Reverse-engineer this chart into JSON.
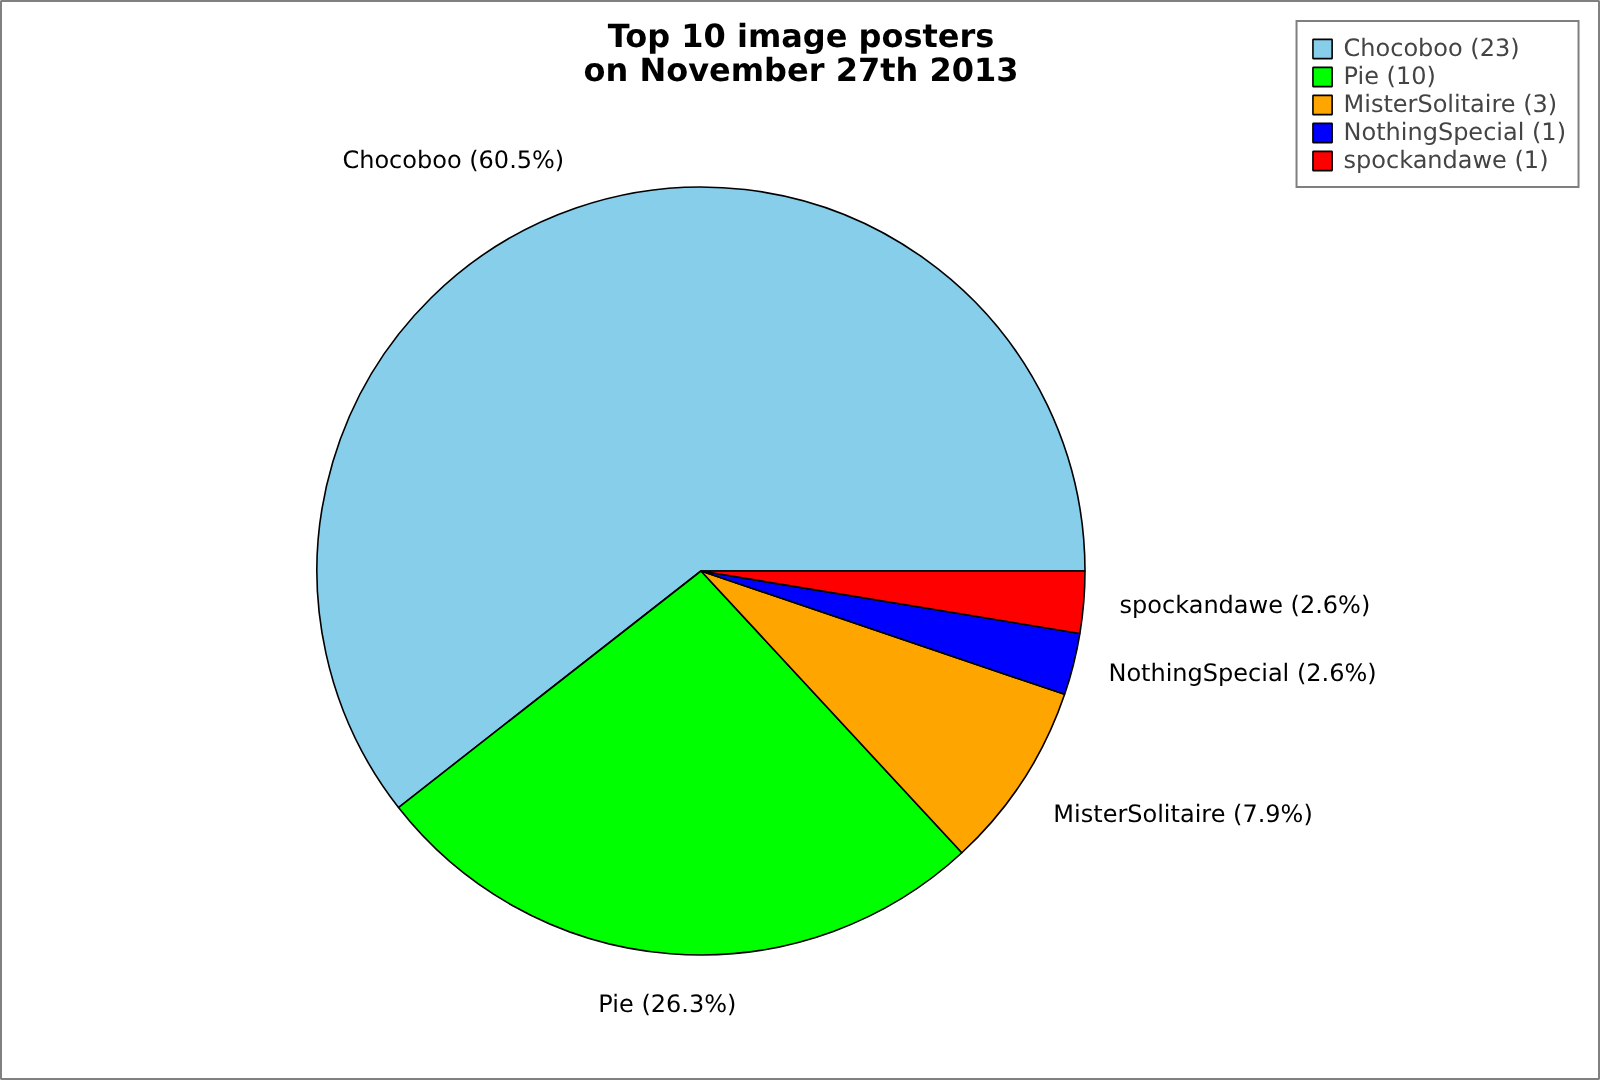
{
  "chart_data": {
    "type": "pie",
    "title": "Top 10 image posters\non November 27th 2013",
    "categories": [
      "Chocoboo (23)",
      "Pie (10)",
      "MisterSolitaire (3)",
      "NothingSpecial (1)",
      "spockandawe (1)"
    ],
    "values": [
      60.5,
      26.3,
      7.9,
      2.6,
      2.6
    ],
    "colors": [
      "#87ceeb",
      "#00ff00",
      "#ffa500",
      "#0000ff",
      "#ff0000"
    ],
    "value_labels": [
      "Chocoboo (60.5%)",
      "Pie (26.3%)",
      "MisterSolitaire (7.9%)",
      "NothingSpecial (2.6%)",
      "spockandawe (2.6%)"
    ],
    "legend": "top right"
  }
}
